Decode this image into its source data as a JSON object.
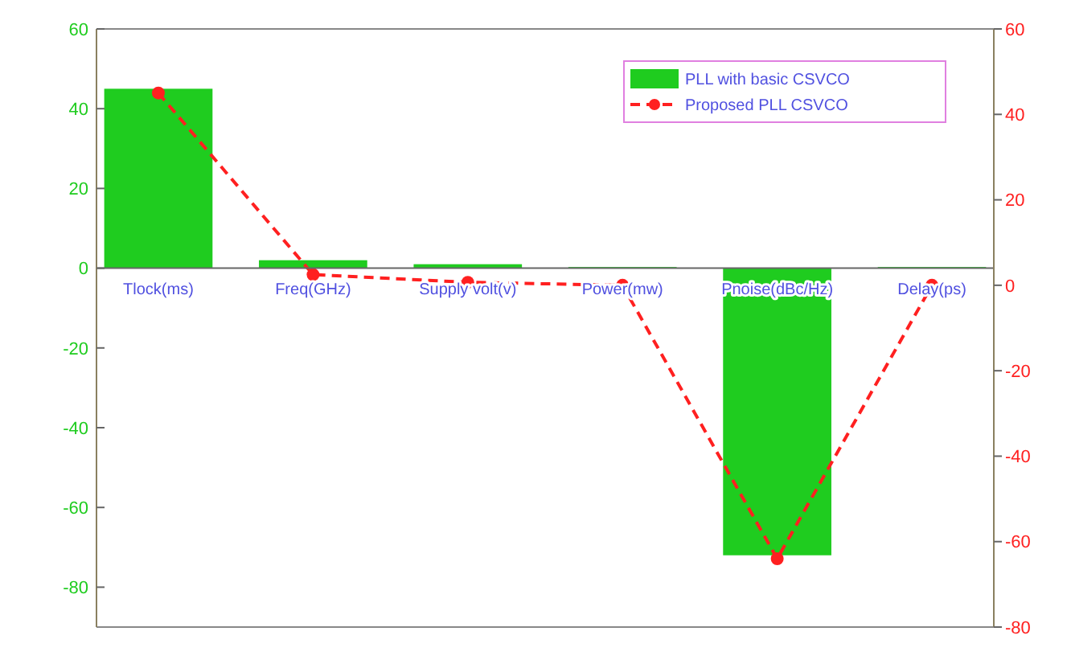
{
  "chart_data": {
    "type": "bar",
    "categories": [
      "Tlock(ms)",
      "Freq(GHz)",
      "Supply volt(v)",
      "Power(mw)",
      "Pnoise(dBc/Hz)",
      "Delay(ps)"
    ],
    "series": [
      {
        "name": "PLL with basic CSVCO",
        "color": "#1fcc1f",
        "values": [
          45,
          2,
          1,
          0.3,
          -72,
          0.3
        ]
      },
      {
        "name": "Proposed PLL CSVCO",
        "type": "line",
        "axis": "y2",
        "color": "#ff2020",
        "marker": "circle",
        "line_style": "dashed",
        "values": [
          45,
          2.5,
          0.7,
          0,
          -64,
          0
        ]
      }
    ],
    "ylim": [
      -90,
      60
    ],
    "yticks": [
      -80,
      -60,
      -40,
      -20,
      0,
      20,
      40,
      60
    ],
    "y2lim": [
      -80,
      60
    ],
    "y2ticks": [
      -80,
      -60,
      -40,
      -20,
      0,
      20,
      40,
      60
    ],
    "legend": "top right",
    "grid": false
  }
}
